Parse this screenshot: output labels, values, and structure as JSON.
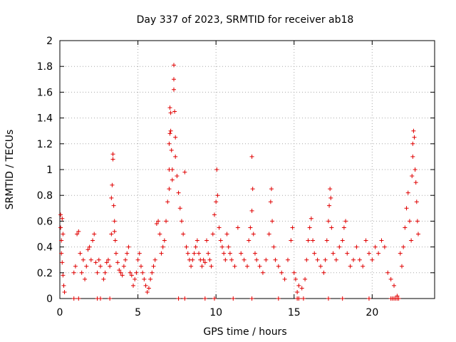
{
  "chart_data": {
    "type": "scatter",
    "title": "Day 337 of 2023, SRMTID for receiver ab18",
    "xlabel": "GPS time / hours",
    "ylabel": "SRMTID / TECUs",
    "xlim": [
      0,
      24
    ],
    "ylim": [
      0,
      2
    ],
    "xticks": [
      0,
      5,
      10,
      15,
      20
    ],
    "yticks": [
      0,
      0.2,
      0.4,
      0.6,
      0.8,
      1,
      1.2,
      1.4,
      1.6,
      1.8,
      2
    ],
    "xtick_labels": [
      "0",
      "5",
      "10",
      "15",
      "20"
    ],
    "ytick_labels": [
      "0",
      "0.2",
      "0.4",
      "0.6",
      "0.8",
      "1",
      "1.2",
      "1.4",
      "1.6",
      "1.8",
      "2"
    ],
    "grid": true,
    "marker": "+",
    "marker_color": "#e00000",
    "series": [
      {
        "name": "SRMTID",
        "points": [
          [
            0.05,
            0.65
          ],
          [
            0.05,
            0.55
          ],
          [
            0.1,
            0.45
          ],
          [
            0.1,
            0.35
          ],
          [
            0.15,
            0.62
          ],
          [
            0.15,
            0.28
          ],
          [
            0.2,
            0.5
          ],
          [
            0.2,
            0.18
          ],
          [
            0.25,
            0.1
          ],
          [
            0.3,
            0.05
          ],
          [
            0.9,
            0.2
          ],
          [
            1.0,
            0.25
          ],
          [
            1.1,
            0.5
          ],
          [
            1.2,
            0.52
          ],
          [
            1.3,
            0.35
          ],
          [
            1.4,
            0.2
          ],
          [
            1.5,
            0.3
          ],
          [
            1.6,
            0.15
          ],
          [
            1.7,
            0.25
          ],
          [
            1.8,
            0.38
          ],
          [
            1.9,
            0.4
          ],
          [
            2.0,
            0.3
          ],
          [
            2.1,
            0.45
          ],
          [
            2.2,
            0.5
          ],
          [
            2.3,
            0.28
          ],
          [
            2.4,
            0.2
          ],
          [
            2.5,
            0.3
          ],
          [
            2.6,
            0.25
          ],
          [
            2.8,
            0.15
          ],
          [
            2.9,
            0.2
          ],
          [
            3.0,
            0.28
          ],
          [
            3.1,
            0.3
          ],
          [
            3.2,
            0.25
          ],
          [
            3.3,
            0.5
          ],
          [
            3.3,
            0.78
          ],
          [
            3.35,
            0.88
          ],
          [
            3.4,
            1.12
          ],
          [
            3.4,
            1.08
          ],
          [
            3.45,
            0.72
          ],
          [
            3.5,
            0.6
          ],
          [
            3.5,
            0.52
          ],
          [
            3.55,
            0.45
          ],
          [
            3.6,
            0.35
          ],
          [
            3.7,
            0.28
          ],
          [
            3.8,
            0.22
          ],
          [
            3.9,
            0.2
          ],
          [
            4.0,
            0.18
          ],
          [
            4.1,
            0.25
          ],
          [
            4.2,
            0.3
          ],
          [
            4.3,
            0.35
          ],
          [
            4.4,
            0.4
          ],
          [
            4.5,
            0.2
          ],
          [
            4.6,
            0.18
          ],
          [
            4.7,
            0.1
          ],
          [
            4.8,
            0.15
          ],
          [
            4.9,
            0.2
          ],
          [
            5.0,
            0.3
          ],
          [
            5.1,
            0.35
          ],
          [
            5.2,
            0.25
          ],
          [
            5.3,
            0.2
          ],
          [
            5.4,
            0.15
          ],
          [
            5.5,
            0.1
          ],
          [
            5.6,
            0.05
          ],
          [
            5.7,
            0.08
          ],
          [
            5.8,
            0.15
          ],
          [
            5.9,
            0.2
          ],
          [
            6.0,
            0.25
          ],
          [
            6.1,
            0.3
          ],
          [
            6.2,
            0.58
          ],
          [
            6.3,
            0.6
          ],
          [
            6.4,
            0.5
          ],
          [
            6.5,
            0.35
          ],
          [
            6.6,
            0.4
          ],
          [
            6.7,
            0.45
          ],
          [
            6.8,
            0.6
          ],
          [
            6.9,
            0.75
          ],
          [
            7.0,
            0.85
          ],
          [
            7.0,
            1.0
          ],
          [
            7.0,
            1.2
          ],
          [
            7.05,
            1.28
          ],
          [
            7.05,
            1.48
          ],
          [
            7.1,
            1.44
          ],
          [
            7.1,
            1.3
          ],
          [
            7.15,
            1.15
          ],
          [
            7.2,
            1.0
          ],
          [
            7.2,
            0.92
          ],
          [
            7.3,
            1.62
          ],
          [
            7.3,
            1.7
          ],
          [
            7.3,
            1.81
          ],
          [
            7.35,
            1.45
          ],
          [
            7.4,
            1.25
          ],
          [
            7.4,
            1.1
          ],
          [
            7.5,
            0.95
          ],
          [
            7.6,
            0.82
          ],
          [
            7.7,
            0.7
          ],
          [
            7.8,
            0.6
          ],
          [
            7.9,
            0.5
          ],
          [
            8.0,
            0.98
          ],
          [
            8.1,
            0.4
          ],
          [
            8.2,
            0.35
          ],
          [
            8.3,
            0.3
          ],
          [
            8.4,
            0.25
          ],
          [
            8.5,
            0.3
          ],
          [
            8.6,
            0.35
          ],
          [
            8.7,
            0.4
          ],
          [
            8.8,
            0.45
          ],
          [
            8.9,
            0.35
          ],
          [
            9.0,
            0.3
          ],
          [
            9.1,
            0.25
          ],
          [
            9.2,
            0.3
          ],
          [
            9.3,
            0.28
          ],
          [
            9.4,
            0.45
          ],
          [
            9.5,
            0.35
          ],
          [
            9.6,
            0.3
          ],
          [
            9.7,
            0.25
          ],
          [
            9.8,
            0.5
          ],
          [
            9.9,
            0.65
          ],
          [
            10.0,
            0.75
          ],
          [
            10.05,
            1.0
          ],
          [
            10.1,
            0.8
          ],
          [
            10.2,
            0.55
          ],
          [
            10.3,
            0.45
          ],
          [
            10.4,
            0.4
          ],
          [
            10.5,
            0.35
          ],
          [
            10.6,
            0.3
          ],
          [
            10.7,
            0.5
          ],
          [
            10.8,
            0.4
          ],
          [
            10.9,
            0.35
          ],
          [
            11.0,
            0.3
          ],
          [
            11.2,
            0.25
          ],
          [
            11.4,
            0.55
          ],
          [
            11.6,
            0.35
          ],
          [
            11.8,
            0.3
          ],
          [
            12.0,
            0.25
          ],
          [
            12.1,
            0.45
          ],
          [
            12.2,
            0.55
          ],
          [
            12.3,
            0.68
          ],
          [
            12.3,
            1.1
          ],
          [
            12.35,
            0.85
          ],
          [
            12.4,
            0.5
          ],
          [
            12.5,
            0.35
          ],
          [
            12.6,
            0.3
          ],
          [
            12.8,
            0.25
          ],
          [
            13.0,
            0.2
          ],
          [
            13.2,
            0.3
          ],
          [
            13.4,
            0.5
          ],
          [
            13.5,
            0.75
          ],
          [
            13.55,
            0.85
          ],
          [
            13.6,
            0.6
          ],
          [
            13.7,
            0.4
          ],
          [
            13.8,
            0.3
          ],
          [
            14.0,
            0.25
          ],
          [
            14.2,
            0.2
          ],
          [
            14.4,
            0.15
          ],
          [
            14.6,
            0.3
          ],
          [
            14.8,
            0.45
          ],
          [
            14.9,
            0.55
          ],
          [
            15.0,
            0.2
          ],
          [
            15.1,
            0.15
          ],
          [
            15.2,
            0.05
          ],
          [
            15.3,
            0.1
          ],
          [
            15.5,
            0.08
          ],
          [
            15.7,
            0.15
          ],
          [
            15.8,
            0.3
          ],
          [
            15.9,
            0.45
          ],
          [
            16.0,
            0.55
          ],
          [
            16.1,
            0.62
          ],
          [
            16.2,
            0.45
          ],
          [
            16.3,
            0.35
          ],
          [
            16.5,
            0.3
          ],
          [
            16.7,
            0.25
          ],
          [
            16.9,
            0.2
          ],
          [
            17.0,
            0.3
          ],
          [
            17.1,
            0.45
          ],
          [
            17.2,
            0.6
          ],
          [
            17.25,
            0.72
          ],
          [
            17.3,
            0.85
          ],
          [
            17.35,
            0.78
          ],
          [
            17.4,
            0.55
          ],
          [
            17.5,
            0.35
          ],
          [
            17.7,
            0.3
          ],
          [
            17.9,
            0.4
          ],
          [
            18.1,
            0.45
          ],
          [
            18.2,
            0.55
          ],
          [
            18.3,
            0.6
          ],
          [
            18.4,
            0.35
          ],
          [
            18.6,
            0.25
          ],
          [
            18.8,
            0.3
          ],
          [
            19.0,
            0.4
          ],
          [
            19.2,
            0.3
          ],
          [
            19.4,
            0.25
          ],
          [
            19.6,
            0.45
          ],
          [
            19.8,
            0.35
          ],
          [
            20.0,
            0.3
          ],
          [
            20.2,
            0.4
          ],
          [
            20.4,
            0.35
          ],
          [
            20.6,
            0.45
          ],
          [
            20.8,
            0.4
          ],
          [
            21.0,
            0.2
          ],
          [
            21.2,
            0.15
          ],
          [
            21.4,
            0.1
          ],
          [
            21.6,
            0.02
          ],
          [
            21.8,
            0.35
          ],
          [
            21.9,
            0.25
          ],
          [
            22.0,
            0.4
          ],
          [
            22.1,
            0.55
          ],
          [
            22.2,
            0.7
          ],
          [
            22.3,
            0.82
          ],
          [
            22.4,
            0.6
          ],
          [
            22.5,
            0.45
          ],
          [
            22.55,
            0.95
          ],
          [
            22.6,
            1.1
          ],
          [
            22.6,
            1.2
          ],
          [
            22.65,
            1.3
          ],
          [
            22.7,
            1.25
          ],
          [
            22.75,
            1.0
          ],
          [
            22.8,
            0.9
          ],
          [
            22.85,
            0.75
          ],
          [
            22.9,
            0.6
          ],
          [
            22.95,
            0.5
          ],
          [
            0.9,
            0.0
          ],
          [
            1.2,
            0.0
          ],
          [
            2.4,
            0.0
          ],
          [
            2.6,
            0.0
          ],
          [
            3.2,
            0.0
          ],
          [
            7.6,
            0.0
          ],
          [
            8.0,
            0.0
          ],
          [
            9.3,
            0.0
          ],
          [
            9.9,
            0.0
          ],
          [
            11.1,
            0.0
          ],
          [
            12.3,
            0.0
          ],
          [
            14.0,
            0.0
          ],
          [
            15.2,
            0.0
          ],
          [
            15.3,
            0.0
          ],
          [
            15.6,
            0.0
          ],
          [
            17.2,
            0.0
          ],
          [
            18.1,
            0.0
          ],
          [
            19.8,
            0.0
          ],
          [
            21.2,
            0.0
          ],
          [
            21.3,
            0.0
          ],
          [
            21.4,
            0.0
          ],
          [
            21.5,
            0.0
          ],
          [
            21.6,
            0.0
          ],
          [
            21.7,
            0.0
          ]
        ]
      }
    ]
  }
}
